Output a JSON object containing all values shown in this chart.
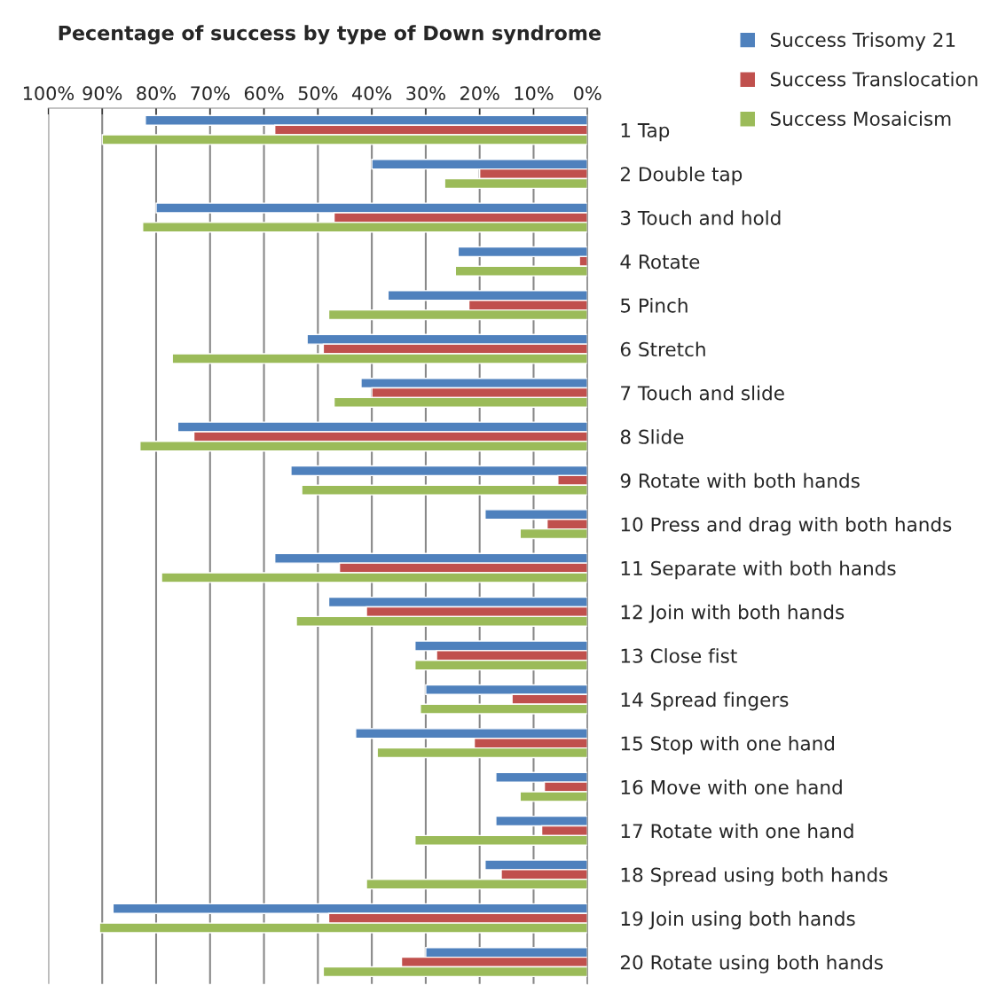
{
  "chart_data": {
    "type": "bar",
    "orientation": "horizontal",
    "title": "Pecentage of success by type of Down syndrome",
    "categories": [
      "1 Tap",
      "2 Double tap",
      "3 Touch and hold",
      "4 Rotate",
      "5 Pinch",
      "6 Stretch",
      "7 Touch and slide",
      "8 Slide",
      "9 Rotate with both hands",
      "10 Press and drag with both hands",
      "11 Separate with both hands",
      "12 Join with both hands",
      "13 Close fist",
      "14 Spread fingers",
      "15 Stop with one hand",
      "16 Move with one hand",
      "17 Rotate with one hand",
      "18 Spread using both hands",
      "19 Join using both hands",
      "20 Rotate using both hands"
    ],
    "series": [
      {
        "name": "Success Trisomy 21",
        "color": "#4f81bd",
        "values": [
          82,
          40,
          80,
          24,
          37,
          52,
          42,
          76,
          55,
          19,
          58,
          48,
          32,
          30,
          43,
          17,
          17,
          19,
          88,
          30
        ]
      },
      {
        "name": "Success Translocation",
        "color": "#c0504d",
        "values": [
          58,
          20,
          47,
          1.5,
          22,
          49,
          40,
          73,
          5.5,
          7.5,
          46,
          41,
          28,
          14,
          21,
          8,
          8.5,
          16,
          48,
          34.5
        ]
      },
      {
        "name": "Success Mosaicism",
        "color": "#9bbb59",
        "values": [
          90,
          26.5,
          82.5,
          24.5,
          48,
          77,
          47,
          83,
          53,
          12.5,
          79,
          54,
          32,
          31,
          39,
          12.5,
          32,
          41,
          90.5,
          49
        ]
      }
    ],
    "xlim": [
      100,
      0
    ],
    "xticks": [
      {
        "value": 100,
        "label": "100%"
      },
      {
        "value": 90,
        "label": "90%"
      },
      {
        "value": 80,
        "label": "80%"
      },
      {
        "value": 70,
        "label": "70%"
      },
      {
        "value": 60,
        "label": "60%"
      },
      {
        "value": 50,
        "label": "50%"
      },
      {
        "value": 40,
        "label": "40%"
      },
      {
        "value": 30,
        "label": "30%"
      },
      {
        "value": 20,
        "label": "20%"
      },
      {
        "value": 10,
        "label": "10%"
      },
      {
        "value": 0,
        "label": "0%"
      }
    ],
    "grid": "x",
    "legend": "top right"
  }
}
